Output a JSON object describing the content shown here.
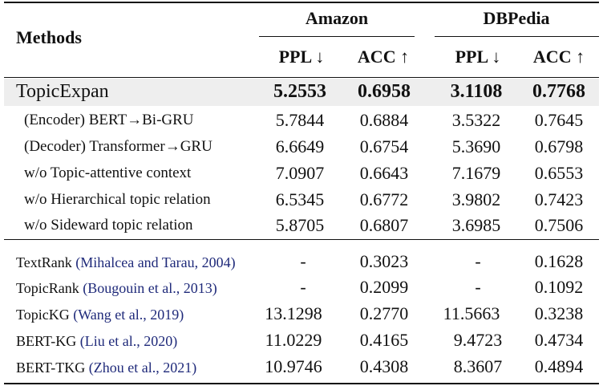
{
  "header": {
    "methods": "Methods",
    "groups": [
      "Amazon",
      "DBPedia"
    ],
    "columns": [
      "PPL ↓",
      "ACC ↑",
      "PPL ↓",
      "ACC ↑"
    ]
  },
  "main_row": {
    "method": "TopicExpan",
    "values": [
      "5.2553",
      "0.6958",
      "3.1108",
      "0.7768"
    ]
  },
  "ablations": [
    {
      "method": "(Encoder) BERT→Bi-GRU",
      "values": [
        "5.7844",
        "0.6884",
        "3.5322",
        "0.7645"
      ]
    },
    {
      "method": "(Decoder) Transformer→GRU",
      "values": [
        "6.6649",
        "0.6754",
        "5.3690",
        "0.6798"
      ]
    },
    {
      "method": "w/o Topic-attentive context",
      "values": [
        "7.0907",
        "0.6643",
        "7.1679",
        "0.6553"
      ]
    },
    {
      "method": "w/o Hierarchical topic relation",
      "values": [
        "6.5345",
        "0.6772",
        "3.9802",
        "0.7423"
      ]
    },
    {
      "method": "w/o Sideward topic relation",
      "values": [
        "5.8705",
        "0.6807",
        "3.6985",
        "0.7506"
      ]
    }
  ],
  "baselines": [
    {
      "method": "TextRank",
      "cite": "(Mihalcea and Tarau, 2004)",
      "values": [
        "-",
        "0.3023",
        "-",
        "0.1628"
      ]
    },
    {
      "method": "TopicRank",
      "cite": "(Bougouin et al., 2013)",
      "values": [
        "-",
        "0.2099",
        "-",
        "0.1092"
      ]
    },
    {
      "method": "TopicKG",
      "cite": "(Wang et al., 2019)",
      "values": [
        "13.1298",
        "0.2770",
        "11.5663",
        "0.3238"
      ]
    },
    {
      "method": "BERT-KG",
      "cite": "(Liu et al., 2020)",
      "values": [
        "11.0229",
        "0.4165",
        "9.4723",
        "0.4734"
      ]
    },
    {
      "method": "BERT-TKG",
      "cite": "(Zhou et al., 2021)",
      "values": [
        "10.9746",
        "0.4308",
        "8.3607",
        "0.4894"
      ]
    }
  ]
}
